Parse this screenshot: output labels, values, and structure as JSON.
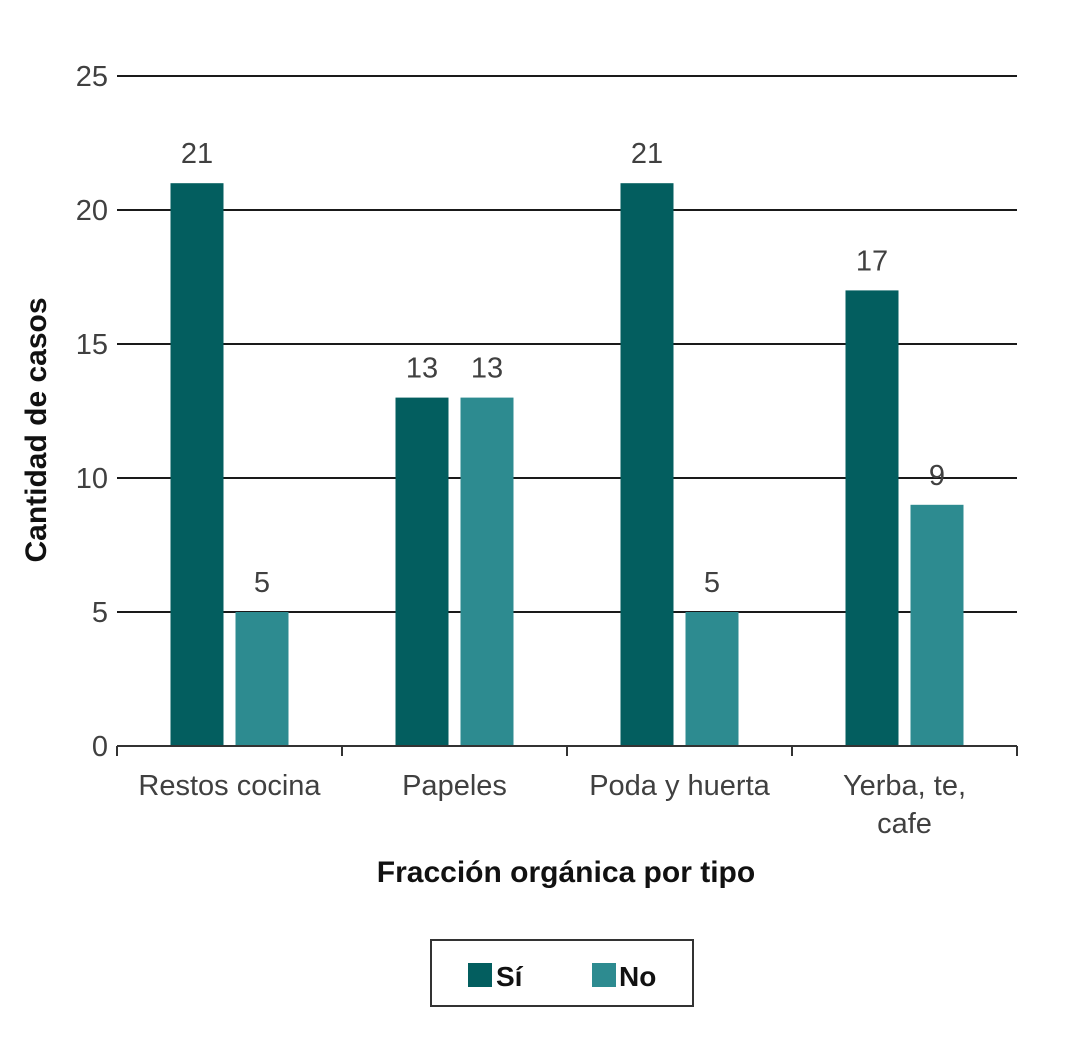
{
  "chart_data": {
    "type": "bar",
    "categories": [
      [
        "Restos cocina"
      ],
      [
        "Papeles"
      ],
      [
        "Poda y huerta"
      ],
      [
        "Yerba, te,",
        "cafe"
      ]
    ],
    "series": [
      {
        "name": "Sí",
        "values": [
          21,
          13,
          21,
          17
        ],
        "color": "#035e5f"
      },
      {
        "name": "No",
        "values": [
          5,
          13,
          5,
          9
        ],
        "color": "#2d8b90"
      }
    ],
    "xlabel": "Fracción orgánica por tipo",
    "ylabel": "Cantidad de casos",
    "ylim": [
      0,
      25
    ],
    "yticks": [
      0,
      5,
      10,
      15,
      20,
      25
    ],
    "grid": true,
    "legend_position": "bottom-center",
    "gridline_color": "#1a1a1a"
  }
}
